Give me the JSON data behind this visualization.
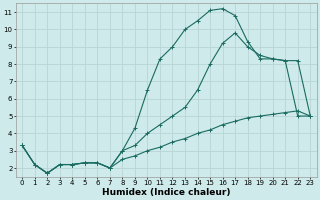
{
  "xlabel": "Humidex (Indice chaleur)",
  "bg_color": "#ceeaea",
  "grid_color": "#b8d4d4",
  "line_color": "#1a6b60",
  "xlim": [
    -0.5,
    23.5
  ],
  "ylim": [
    1.5,
    11.5
  ],
  "xticks": [
    0,
    1,
    2,
    3,
    4,
    5,
    6,
    7,
    8,
    9,
    10,
    11,
    12,
    13,
    14,
    15,
    16,
    17,
    18,
    19,
    20,
    21,
    22,
    23
  ],
  "yticks": [
    2,
    3,
    4,
    5,
    6,
    7,
    8,
    9,
    10,
    11
  ],
  "line1_x": [
    0,
    1,
    2,
    3,
    4,
    5,
    6,
    7,
    8,
    9,
    10,
    11,
    12,
    13,
    14,
    15,
    16,
    17,
    18,
    19,
    20,
    21,
    22,
    23
  ],
  "line1_y": [
    3.3,
    2.2,
    1.7,
    2.2,
    2.2,
    2.3,
    2.3,
    2.0,
    3.0,
    4.3,
    6.5,
    8.3,
    9.0,
    10.0,
    10.5,
    11.1,
    11.2,
    10.8,
    9.3,
    8.3,
    8.3,
    8.2,
    5.0,
    5.0
  ],
  "line2_x": [
    0,
    1,
    2,
    3,
    4,
    5,
    6,
    7,
    8,
    9,
    10,
    11,
    12,
    13,
    14,
    15,
    16,
    17,
    18,
    19,
    20,
    21,
    22,
    23
  ],
  "line2_y": [
    3.3,
    2.2,
    1.7,
    2.2,
    2.2,
    2.3,
    2.3,
    2.0,
    3.0,
    3.3,
    4.0,
    4.5,
    5.0,
    5.5,
    6.5,
    8.0,
    9.2,
    9.8,
    9.0,
    8.5,
    8.3,
    8.2,
    8.2,
    5.0
  ],
  "line3_x": [
    0,
    1,
    2,
    3,
    4,
    5,
    6,
    7,
    8,
    9,
    10,
    11,
    12,
    13,
    14,
    15,
    16,
    17,
    18,
    19,
    20,
    21,
    22,
    23
  ],
  "line3_y": [
    3.3,
    2.2,
    1.7,
    2.2,
    2.2,
    2.3,
    2.3,
    2.0,
    2.5,
    2.7,
    3.0,
    3.2,
    3.5,
    3.7,
    4.0,
    4.2,
    4.5,
    4.7,
    4.9,
    5.0,
    5.1,
    5.2,
    5.3,
    5.0
  ]
}
